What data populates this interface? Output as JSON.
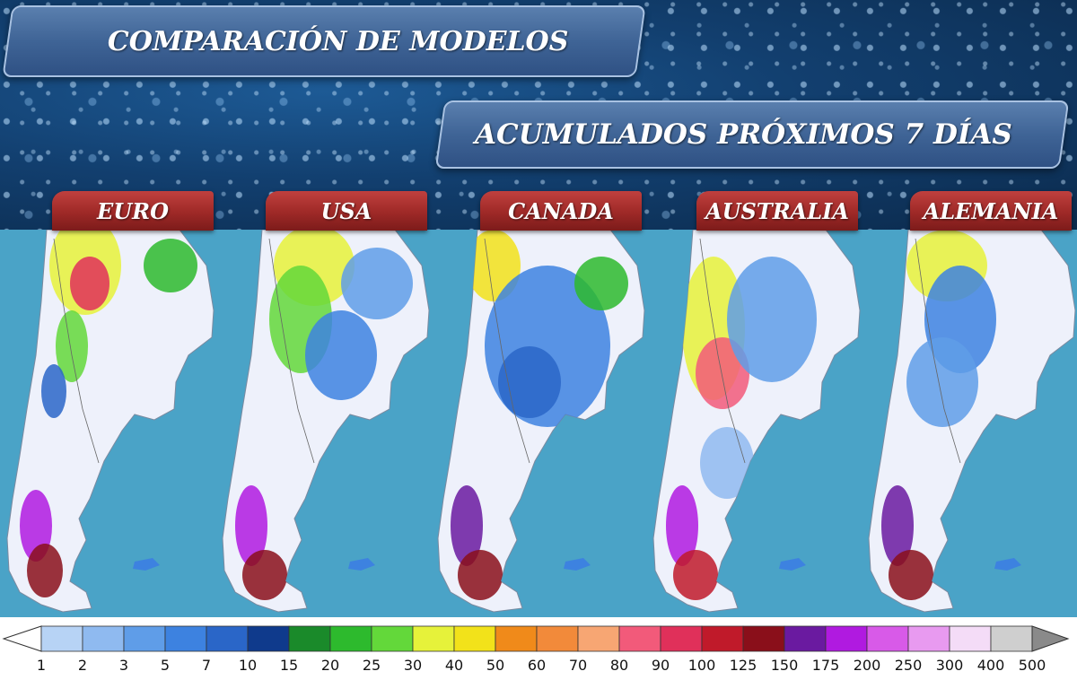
{
  "header": {
    "title_primary": "COMPARACIÓN DE MODELOS",
    "title_secondary": "ACUMULADOS PRÓXIMOS 7 DÍAS"
  },
  "models": [
    {
      "label": "EURO"
    },
    {
      "label": "USA"
    },
    {
      "label": "CANADA"
    },
    {
      "label": "AUSTRALIA"
    },
    {
      "label": "ALEMANIA"
    }
  ],
  "legend": {
    "ticks": [
      "1",
      "2",
      "3",
      "5",
      "7",
      "10",
      "15",
      "20",
      "25",
      "30",
      "40",
      "50",
      "60",
      "70",
      "80",
      "90",
      "100",
      "125",
      "150",
      "175",
      "200",
      "250",
      "300",
      "400",
      "500"
    ],
    "colors": [
      "#b7d3f5",
      "#8fbaf0",
      "#5f9de8",
      "#3d82e0",
      "#2a66c8",
      "#0f3a8c",
      "#1a8a2a",
      "#2dba2d",
      "#63d83a",
      "#e6f23a",
      "#f2e21a",
      "#f08a1a",
      "#f28a3a",
      "#f7a673",
      "#f25a7a",
      "#e0305a",
      "#c01a2a",
      "#8a0f1a",
      "#6a1aa0",
      "#b01ae0",
      "#d85ae8",
      "#e89af0",
      "#f4dcf7",
      "#cfcfcf",
      "#8a8a8a"
    ],
    "below_first_color": "#ffffff"
  },
  "map": {
    "ocean_color": "#4aa3c7",
    "land_color": "#eef1fb"
  }
}
